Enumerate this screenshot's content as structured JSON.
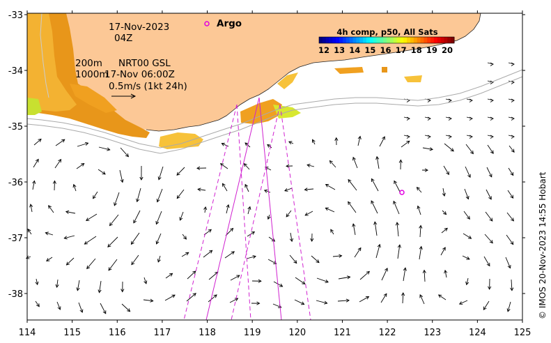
{
  "labels": {
    "date": "17-Nov-2023",
    "hour": "04Z",
    "iso_200": "200m",
    "iso_1000": "1000m",
    "product": "NRT00 GSL",
    "product_time": "17-Nov 06:00Z",
    "scale_text": "0.5m/s (1kt 24h)",
    "argo": "Argo",
    "credit": "© IMOS 20-Nov-2023 14:55 Hobart"
  },
  "colorbar": {
    "title": "4h comp, p50, All Sats",
    "ticks": [
      "12",
      "13",
      "14",
      "15",
      "16",
      "17",
      "18",
      "19",
      "20"
    ],
    "colors": [
      "#00007f",
      "#0000ff",
      "#007fff",
      "#00ffff",
      "#7fff7f",
      "#ffff00",
      "#ff7f00",
      "#ff0000",
      "#7f0000"
    ]
  },
  "axes": {
    "x_ticks": [
      "114",
      "115",
      "116",
      "117",
      "118",
      "119",
      "120",
      "121",
      "122",
      "123",
      "124",
      "125"
    ],
    "y_ticks": [
      "-33",
      "-34",
      "-35",
      "-36",
      "-37",
      "-38"
    ]
  },
  "colors": {
    "land": "#fcc896",
    "sst_warm": "#f0a020",
    "sst_mid": "#f7c23a",
    "sst_cool": "#d8e830",
    "argo": "#e000e0",
    "track": "#d020d0"
  }
}
